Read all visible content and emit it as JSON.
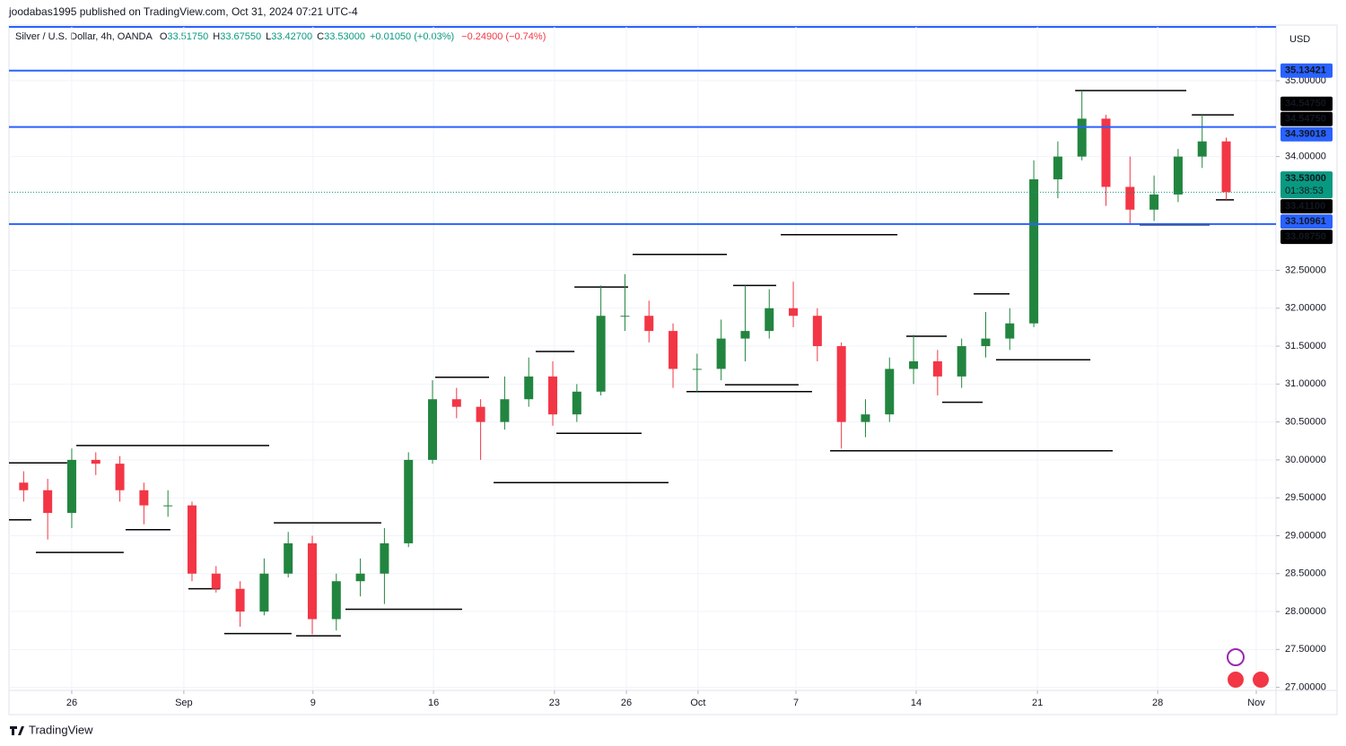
{
  "header": {
    "publisher": "joodabas1995 published on TradingView.com, Oct 31, 2024 07:21 UTC-4",
    "currency": "USD",
    "brand": "TradingView"
  },
  "chart_data": {
    "type": "candlestick",
    "legend": {
      "symbol": "Silver / U.S. Dollar, 4h, OANDA",
      "ohlc": [
        {
          "key": "O",
          "value": "33.51750"
        },
        {
          "key": "H",
          "value": "33.67550"
        },
        {
          "key": "L",
          "value": "33.42700"
        },
        {
          "key": "C",
          "value": "33.53000"
        }
      ],
      "change": "+0.01050 (+0.03%)",
      "change_color": "#089981",
      "session_change": "−0.24900 (−0.74%)",
      "session_color": "#f23645"
    },
    "up_color": "#22853f",
    "down_color": "#f23645",
    "xlim": [
      -2.61,
      50.07
    ],
    "ylim": [
      26.96,
      35.71
    ],
    "xticks": [
      {
        "value": 0,
        "label": "26"
      },
      {
        "value": 4.66,
        "label": "Sep"
      },
      {
        "value": 10.03,
        "label": "9"
      },
      {
        "value": 15.04,
        "label": "16"
      },
      {
        "value": 20.07,
        "label": "23"
      },
      {
        "value": 23.06,
        "label": "26"
      },
      {
        "value": 26.04,
        "label": "Oct"
      },
      {
        "value": 30.11,
        "label": "7"
      },
      {
        "value": 35.11,
        "label": "14"
      },
      {
        "value": 40.15,
        "label": "21"
      },
      {
        "value": 45.15,
        "label": "28"
      },
      {
        "value": 49.25,
        "label": "Nov"
      }
    ],
    "yticks": [
      {
        "value": 35,
        "label": "35.00000"
      },
      {
        "value": 34,
        "label": "34.00000"
      },
      {
        "value": 32.5,
        "label": "32.50000"
      },
      {
        "value": 32,
        "label": "32.00000"
      },
      {
        "value": 31.5,
        "label": "31.50000"
      },
      {
        "value": 31,
        "label": "31.00000"
      },
      {
        "value": 30.5,
        "label": "30.50000"
      },
      {
        "value": 30,
        "label": "30.00000"
      },
      {
        "value": 29.5,
        "label": "29.50000"
      },
      {
        "value": 29,
        "label": "29.00000"
      },
      {
        "value": 28.5,
        "label": "28.50000"
      },
      {
        "value": 28,
        "label": "28.00000"
      },
      {
        "value": 27.5,
        "label": "27.50000"
      },
      {
        "value": 27,
        "label": "27.00000"
      }
    ],
    "grid": true,
    "x": [
      -2,
      -1,
      0,
      1,
      2,
      3,
      4,
      5,
      6,
      7,
      8,
      9,
      10,
      11,
      12,
      13,
      14,
      15,
      16,
      17,
      18,
      19,
      20,
      21,
      22,
      23,
      24,
      25,
      26,
      27,
      28,
      29,
      30,
      31,
      32,
      33,
      34,
      35,
      36,
      37,
      38,
      39,
      40,
      41,
      42,
      43,
      44,
      45,
      46,
      47,
      48
    ],
    "open": [
      29.7,
      29.6,
      29.3,
      30.0,
      29.95,
      29.6,
      29.4,
      29.4,
      28.5,
      28.3,
      28.0,
      28.5,
      28.9,
      27.9,
      28.4,
      28.5,
      28.9,
      30.0,
      30.8,
      30.7,
      30.5,
      30.8,
      31.1,
      30.6,
      30.9,
      31.9,
      31.9,
      31.7,
      31.2,
      31.2,
      31.6,
      31.7,
      32.0,
      31.9,
      31.5,
      30.5,
      30.6,
      31.2,
      31.3,
      31.1,
      31.5,
      31.6,
      31.8,
      33.7,
      34.0,
      34.5,
      33.6,
      33.3,
      33.5,
      34.0,
      34.2
    ],
    "high": [
      29.85,
      29.75,
      30.15,
      30.1,
      30.05,
      29.7,
      29.6,
      29.45,
      28.6,
      28.4,
      28.7,
      29.05,
      29.0,
      28.5,
      28.7,
      29.1,
      30.1,
      31.05,
      30.95,
      30.8,
      31.1,
      31.35,
      31.3,
      31.0,
      32.3,
      32.45,
      32.1,
      31.8,
      31.4,
      31.85,
      32.3,
      32.25,
      32.35,
      32.0,
      31.55,
      30.8,
      31.35,
      31.65,
      31.45,
      31.6,
      31.95,
      32.0,
      33.95,
      34.2,
      34.87,
      34.55,
      34.0,
      33.75,
      34.1,
      34.55,
      34.25
    ],
    "low": [
      29.45,
      28.95,
      29.1,
      29.8,
      29.45,
      29.15,
      29.25,
      28.4,
      28.25,
      27.8,
      27.95,
      28.45,
      27.7,
      27.75,
      28.2,
      28.1,
      28.85,
      29.95,
      30.55,
      30.0,
      30.4,
      30.7,
      30.45,
      30.5,
      30.85,
      31.7,
      31.55,
      30.95,
      30.9,
      31.05,
      31.3,
      31.6,
      31.75,
      31.3,
      30.15,
      30.3,
      30.5,
      31.0,
      30.85,
      30.95,
      31.35,
      31.45,
      31.75,
      33.45,
      33.95,
      33.35,
      33.1,
      33.15,
      33.4,
      33.85,
      33.43
    ],
    "close": [
      29.6,
      29.3,
      30.0,
      29.95,
      29.6,
      29.4,
      29.4,
      28.5,
      28.3,
      28.0,
      28.5,
      28.9,
      27.9,
      28.4,
      28.5,
      28.9,
      30.0,
      30.8,
      30.7,
      30.5,
      30.8,
      31.1,
      30.6,
      30.9,
      31.9,
      31.9,
      31.7,
      31.2,
      31.2,
      31.6,
      31.7,
      32.0,
      31.9,
      31.5,
      30.5,
      30.6,
      31.2,
      31.3,
      31.1,
      31.5,
      31.6,
      31.8,
      33.7,
      34.0,
      34.5,
      33.6,
      33.3,
      33.5,
      34.0,
      34.2,
      33.53
    ],
    "step_color": "#000000",
    "resistance": [
      {
        "start": -2.61,
        "end": -0.19,
        "price": 29.96
      },
      {
        "start": 0.19,
        "end": 8.21,
        "price": 30.19
      },
      {
        "start": 8.4,
        "end": 12.87,
        "price": 29.17
      },
      {
        "start": 15.11,
        "end": 17.35,
        "price": 31.09
      },
      {
        "start": 19.29,
        "end": 20.9,
        "price": 31.43
      },
      {
        "start": 20.9,
        "end": 23.13,
        "price": 32.28
      },
      {
        "start": 23.32,
        "end": 27.24,
        "price": 32.71
      },
      {
        "start": 27.5,
        "end": 29.29,
        "price": 32.3
      },
      {
        "start": 29.48,
        "end": 34.33,
        "price": 32.97
      },
      {
        "start": 34.7,
        "end": 36.38,
        "price": 31.63
      },
      {
        "start": 37.5,
        "end": 38.99,
        "price": 32.19
      },
      {
        "start": 41.72,
        "end": 46.34,
        "price": 34.87
      },
      {
        "start": 46.57,
        "end": 48.32,
        "price": 34.55
      }
    ],
    "support": [
      {
        "start": -2.61,
        "end": -1.68,
        "price": 29.21
      },
      {
        "start": -1.49,
        "end": 2.16,
        "price": 28.78
      },
      {
        "start": 2.24,
        "end": 4.1,
        "price": 29.08
      },
      {
        "start": 4.85,
        "end": 6.16,
        "price": 28.3
      },
      {
        "start": 6.34,
        "end": 9.14,
        "price": 27.71
      },
      {
        "start": 9.33,
        "end": 11.19,
        "price": 27.68
      },
      {
        "start": 11.38,
        "end": 16.23,
        "price": 28.03
      },
      {
        "start": 17.54,
        "end": 24.81,
        "price": 29.7
      },
      {
        "start": 20.15,
        "end": 23.69,
        "price": 30.35
      },
      {
        "start": 25.56,
        "end": 30.78,
        "price": 30.9
      },
      {
        "start": 27.16,
        "end": 30.22,
        "price": 30.99
      },
      {
        "start": 31.53,
        "end": 43.28,
        "price": 30.12
      },
      {
        "start": 36.19,
        "end": 37.87,
        "price": 30.76
      },
      {
        "start": 38.43,
        "end": 42.35,
        "price": 31.32
      },
      {
        "start": 44.4,
        "end": 47.31,
        "price": 33.1
      },
      {
        "start": 47.57,
        "end": 48.32,
        "price": 33.43
      }
    ],
    "levels": [
      35.13421,
      34.39018,
      33.10961
    ],
    "level_color": "#2962ff",
    "last_price": 33.53,
    "last_color": "#089981",
    "axis_labels": [
      {
        "value": 35.13421,
        "label": "35.13421",
        "bg": "#2962ff"
      },
      {
        "value": 34.5475,
        "label": "34.54750",
        "bg": "#000000"
      },
      {
        "value": 34.5475,
        "label": "34.54750",
        "bg": "#000000"
      },
      {
        "value": 34.39018,
        "label": "34.39018",
        "bg": "#2962ff"
      },
      {
        "value": 33.53,
        "label": "33.53000",
        "sub": "01:38:53",
        "bg": "#089981"
      },
      {
        "value": 33.411,
        "label": "33.41100",
        "bg": "#000000"
      },
      {
        "value": 33.10961,
        "label": "33.10961",
        "bg": "#2962ff"
      },
      {
        "value": 33.0875,
        "label": "33.08750",
        "bg": "#000000"
      }
    ]
  }
}
